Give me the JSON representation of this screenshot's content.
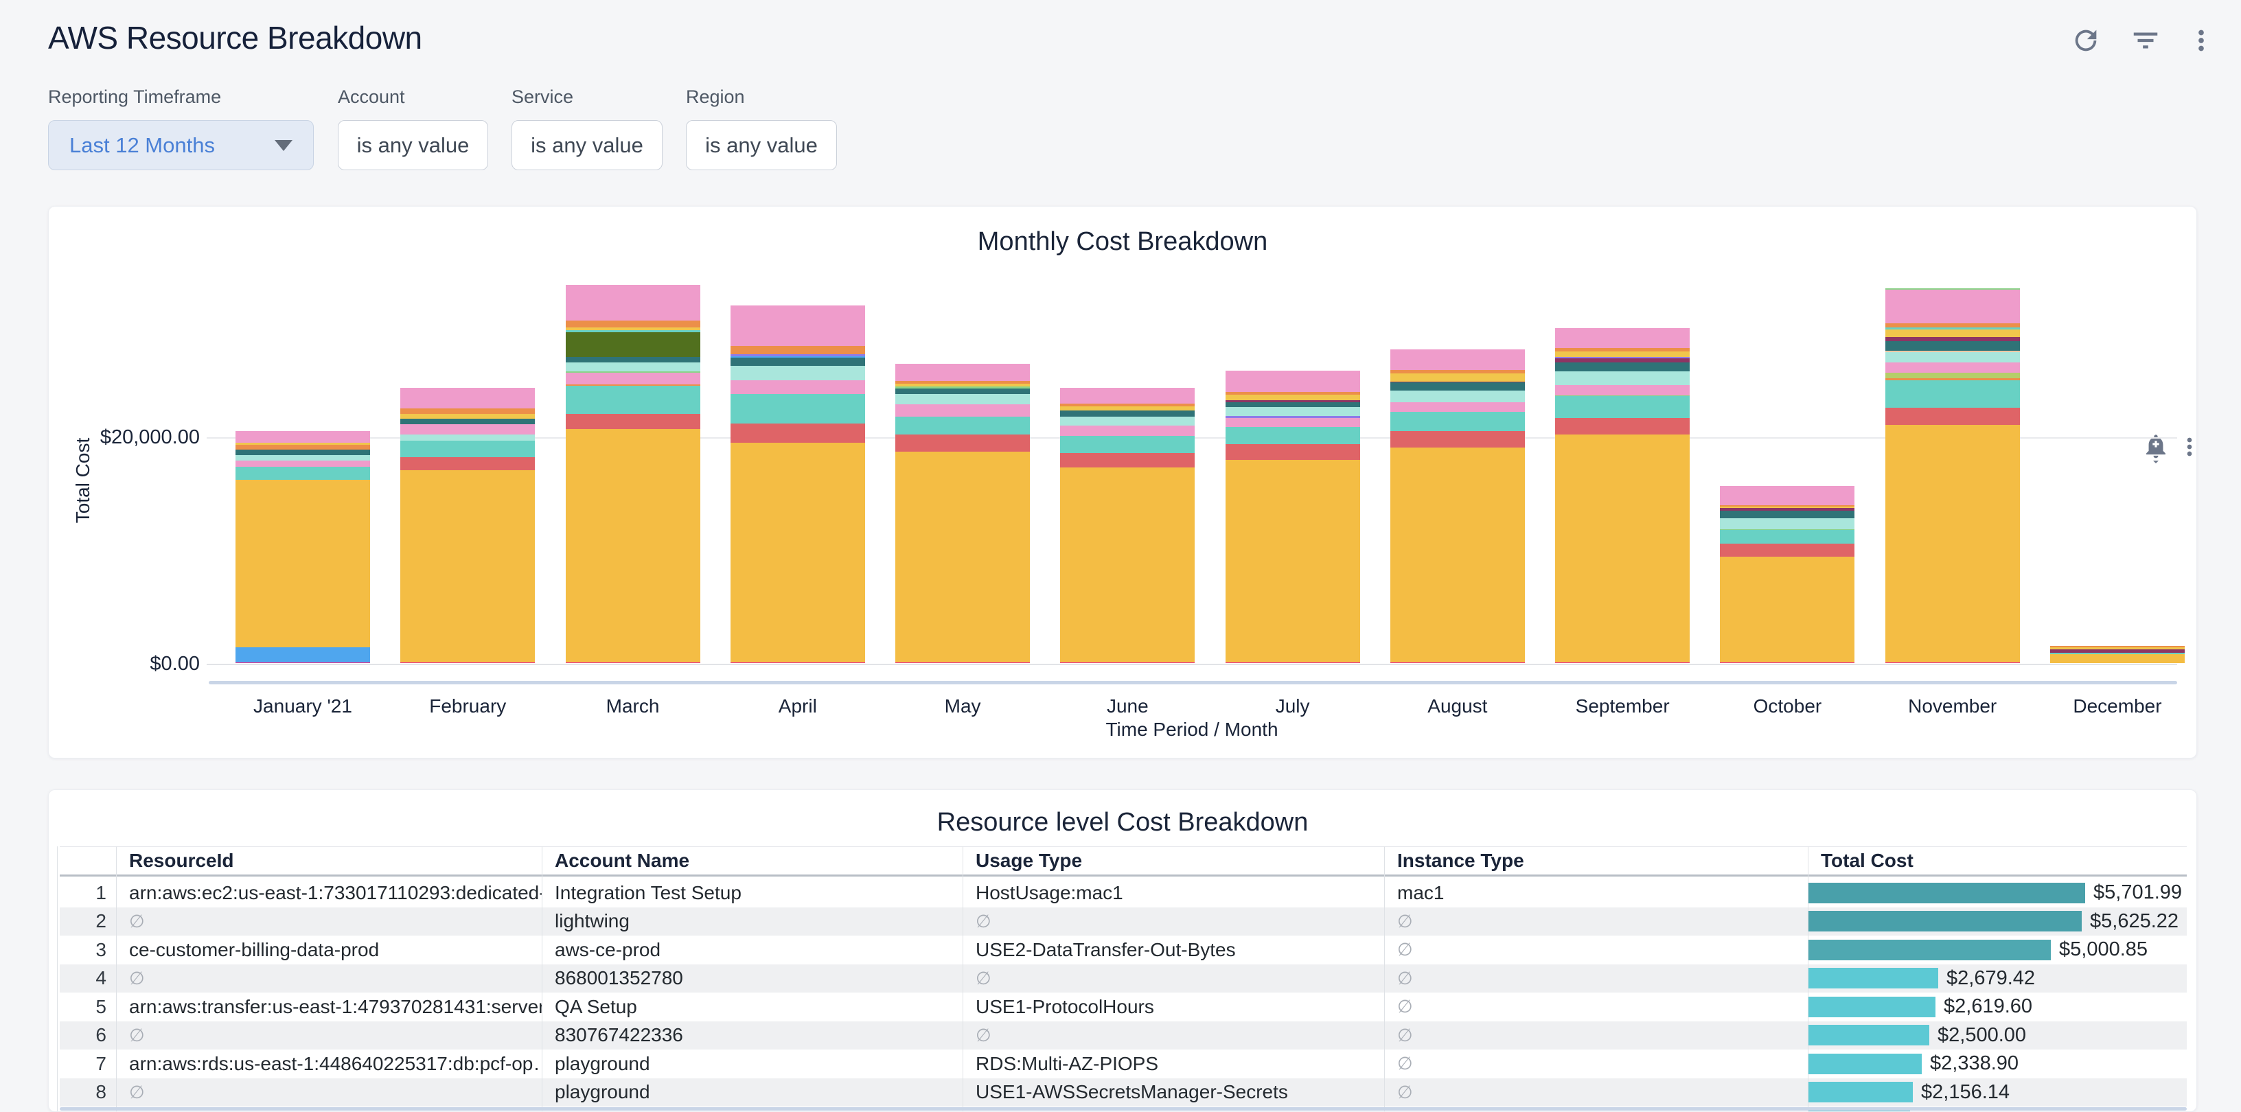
{
  "header": {
    "title": "AWS Resource Breakdown",
    "icons": [
      "refresh-icon",
      "filter-list-icon",
      "kebab-menu-icon"
    ]
  },
  "filters": [
    {
      "label": "Reporting Timeframe",
      "value": "Last 12 Months",
      "type": "dropdown"
    },
    {
      "label": "Account",
      "value": "is any value",
      "type": "button"
    },
    {
      "label": "Service",
      "value": "is any value",
      "type": "button"
    },
    {
      "label": "Region",
      "value": "is any value",
      "type": "button"
    }
  ],
  "chart_card": {
    "title": "Monthly Cost Breakdown",
    "icons": [
      "alert-bell-plus-icon",
      "kebab-menu-icon"
    ]
  },
  "chart_data": {
    "type": "bar",
    "stacked": true,
    "title": "Monthly Cost Breakdown",
    "xlabel": "Time Period / Month",
    "ylabel": "Total Cost",
    "yticks": [
      {
        "value": 20000,
        "label": "$20,000.00"
      },
      {
        "value": 0,
        "label": "$0.00"
      }
    ],
    "ylim": [
      0,
      34000
    ],
    "grid": "horizontal",
    "legend": "none",
    "palette": {
      "amber": "#F4BD44",
      "blue": "#4FA6EE",
      "magenta": "#E8348B",
      "coral": "#DF6467",
      "teal": "#68D1C4",
      "pink": "#EF9CCB",
      "paleCyan": "#A9E6DC",
      "darkTeal": "#2F7377",
      "olive": "#51701E",
      "orange": "#EC8F49",
      "yellow": "#F1C64C",
      "green": "#8BD389",
      "lime": "#B5CE69",
      "maroon": "#8E3563",
      "purple": "#8F7BE8",
      "peach": "#EFC9A5"
    },
    "categories": [
      "January '21",
      "February",
      "March",
      "April",
      "May",
      "June",
      "July",
      "August",
      "September",
      "October",
      "November",
      "December"
    ],
    "bars": [
      {
        "month": "January '21",
        "total": 20500,
        "segments": [
          [
            "magenta",
            60
          ],
          [
            "blue",
            1350
          ],
          [
            "amber",
            14800
          ],
          [
            "teal",
            1100
          ],
          [
            "pink",
            600
          ],
          [
            "paleCyan",
            480
          ],
          [
            "darkTeal",
            480
          ],
          [
            "orange",
            410
          ],
          [
            "yellow",
            200
          ],
          [
            "pink",
            1020
          ]
        ]
      },
      {
        "month": "February",
        "total": 24300,
        "segments": [
          [
            "magenta",
            60
          ],
          [
            "amber",
            17000
          ],
          [
            "coral",
            1150
          ],
          [
            "teal",
            1400
          ],
          [
            "paleCyan",
            560
          ],
          [
            "pink",
            900
          ],
          [
            "darkTeal",
            480
          ],
          [
            "yellow",
            480
          ],
          [
            "orange",
            430
          ],
          [
            "pink",
            1840
          ]
        ]
      },
      {
        "month": "March",
        "total": 33400,
        "segments": [
          [
            "magenta",
            60
          ],
          [
            "amber",
            20600
          ],
          [
            "coral",
            1330
          ],
          [
            "teal",
            2480
          ],
          [
            "orange",
            120
          ],
          [
            "pink",
            1030
          ],
          [
            "green",
            120
          ],
          [
            "paleCyan",
            790
          ],
          [
            "darkTeal",
            480
          ],
          [
            "olive",
            2230
          ],
          [
            "teal",
            180
          ],
          [
            "yellow",
            240
          ],
          [
            "orange",
            600
          ],
          [
            "pink",
            3140
          ]
        ]
      },
      {
        "month": "April",
        "total": 31600,
        "segments": [
          [
            "magenta",
            60
          ],
          [
            "amber",
            19400
          ],
          [
            "coral",
            1700
          ],
          [
            "teal",
            2600
          ],
          [
            "pink",
            1200
          ],
          [
            "paleCyan",
            1300
          ],
          [
            "darkTeal",
            700
          ],
          [
            "blue",
            160
          ],
          [
            "purple",
            160
          ],
          [
            "orange",
            700
          ],
          [
            "pink",
            3620
          ]
        ]
      },
      {
        "month": "May",
        "total": 26400,
        "segments": [
          [
            "magenta",
            60
          ],
          [
            "amber",
            18600
          ],
          [
            "coral",
            1500
          ],
          [
            "teal",
            1600
          ],
          [
            "pink",
            1100
          ],
          [
            "paleCyan",
            900
          ],
          [
            "darkTeal",
            500
          ],
          [
            "green",
            140
          ],
          [
            "yellow",
            300
          ],
          [
            "orange",
            230
          ],
          [
            "pink",
            1470
          ]
        ]
      },
      {
        "month": "June",
        "total": 24300,
        "segments": [
          [
            "magenta",
            60
          ],
          [
            "amber",
            17200
          ],
          [
            "coral",
            1300
          ],
          [
            "teal",
            1500
          ],
          [
            "pink",
            900
          ],
          [
            "paleCyan",
            800
          ],
          [
            "darkTeal",
            550
          ],
          [
            "yellow",
            390
          ],
          [
            "orange",
            230
          ],
          [
            "pink",
            1370
          ]
        ]
      },
      {
        "month": "July",
        "total": 25800,
        "segments": [
          [
            "magenta",
            60
          ],
          [
            "amber",
            17900
          ],
          [
            "coral",
            1400
          ],
          [
            "teal",
            1500
          ],
          [
            "pink",
            800
          ],
          [
            "purple",
            150
          ],
          [
            "paleCyan",
            800
          ],
          [
            "darkTeal",
            450
          ],
          [
            "maroon",
            160
          ],
          [
            "yellow",
            500
          ],
          [
            "orange",
            200
          ],
          [
            "pink",
            1880
          ]
        ]
      },
      {
        "month": "August",
        "total": 27700,
        "segments": [
          [
            "magenta",
            60
          ],
          [
            "amber",
            19000
          ],
          [
            "coral",
            1400
          ],
          [
            "teal",
            1700
          ],
          [
            "pink",
            900
          ],
          [
            "paleCyan",
            1000
          ],
          [
            "darkTeal",
            700
          ],
          [
            "maroon",
            120
          ],
          [
            "yellow",
            700
          ],
          [
            "orange",
            300
          ],
          [
            "pink",
            1820
          ]
        ]
      },
      {
        "month": "September",
        "total": 29600,
        "segments": [
          [
            "magenta",
            60
          ],
          [
            "amber",
            20100
          ],
          [
            "coral",
            1500
          ],
          [
            "teal",
            1900
          ],
          [
            "green",
            100
          ],
          [
            "pink",
            900
          ],
          [
            "paleCyan",
            1200
          ],
          [
            "darkTeal",
            800
          ],
          [
            "maroon",
            350
          ],
          [
            "purple",
            140
          ],
          [
            "yellow",
            500
          ],
          [
            "orange",
            250
          ],
          [
            "pink",
            1800
          ]
        ]
      },
      {
        "month": "October",
        "total": 15610,
        "segments": [
          [
            "magenta",
            60
          ],
          [
            "amber",
            9340
          ],
          [
            "coral",
            1150
          ],
          [
            "teal",
            1200
          ],
          [
            "green",
            90
          ],
          [
            "paleCyan",
            950
          ],
          [
            "darkTeal",
            650
          ],
          [
            "maroon",
            250
          ],
          [
            "yellow",
            150
          ],
          [
            "orange",
            90
          ],
          [
            "pink",
            1680
          ]
        ]
      },
      {
        "month": "November",
        "total": 33100,
        "segments": [
          [
            "magenta",
            60
          ],
          [
            "amber",
            21000
          ],
          [
            "coral",
            1510
          ],
          [
            "teal",
            2420
          ],
          [
            "orange",
            180
          ],
          [
            "lime",
            480
          ],
          [
            "pink",
            900
          ],
          [
            "paleCyan",
            900
          ],
          [
            "peach",
            120
          ],
          [
            "darkTeal",
            850
          ],
          [
            "maroon",
            360
          ],
          [
            "yellow",
            660
          ],
          [
            "teal",
            180
          ],
          [
            "orange",
            360
          ],
          [
            "pink",
            3000
          ],
          [
            "green",
            120
          ]
        ]
      },
      {
        "month": "December",
        "total": 1500,
        "segments": [
          [
            "amber",
            800
          ],
          [
            "teal",
            120
          ],
          [
            "maroon",
            280
          ],
          [
            "yellow",
            200
          ],
          [
            "orange",
            100
          ]
        ]
      }
    ]
  },
  "table_card": {
    "title": "Resource level Cost Breakdown",
    "columns": [
      "ResourceId",
      "Account Name",
      "Usage Type",
      "Instance Type",
      "Total Cost"
    ],
    "null_symbol": "∅",
    "max_bar_value": 5701.99,
    "rows": [
      {
        "index": "1",
        "resource_id": "arn:aws:ec2:us-east-1:733017110293:dedicated-…",
        "account_name": "Integration Test Setup",
        "usage_type": "HostUsage:mac1",
        "instance_type": "mac1",
        "total_cost": "$5,701.99",
        "cost_value": 5701.99,
        "bar_color": "#49A0AA"
      },
      {
        "index": "2",
        "resource_id": "∅",
        "account_name": "lightwing",
        "usage_type": "∅",
        "instance_type": "∅",
        "total_cost": "$5,625.22",
        "cost_value": 5625.22,
        "bar_color": "#49A0AA"
      },
      {
        "index": "3",
        "resource_id": "ce-customer-billing-data-prod",
        "account_name": "aws-ce-prod",
        "usage_type": "USE2-DataTransfer-Out-Bytes",
        "instance_type": "∅",
        "total_cost": "$5,000.85",
        "cost_value": 5000.85,
        "bar_color": "#4FA8B1"
      },
      {
        "index": "4",
        "resource_id": "∅",
        "account_name": "868001352780",
        "usage_type": "∅",
        "instance_type": "∅",
        "total_cost": "$2,679.42",
        "cost_value": 2679.42,
        "bar_color": "#5CC9D4"
      },
      {
        "index": "5",
        "resource_id": "arn:aws:transfer:us-east-1:479370281431:server…",
        "account_name": "QA Setup",
        "usage_type": "USE1-ProtocolHours",
        "instance_type": "∅",
        "total_cost": "$2,619.60",
        "cost_value": 2619.6,
        "bar_color": "#5CC9D4"
      },
      {
        "index": "6",
        "resource_id": "∅",
        "account_name": "830767422336",
        "usage_type": "∅",
        "instance_type": "∅",
        "total_cost": "$2,500.00",
        "cost_value": 2500.0,
        "bar_color": "#5CC9D4"
      },
      {
        "index": "7",
        "resource_id": "arn:aws:rds:us-east-1:448640225317:db:pcf-op…",
        "account_name": "playground",
        "usage_type": "RDS:Multi-AZ-PIOPS",
        "instance_type": "∅",
        "total_cost": "$2,338.90",
        "cost_value": 2338.9,
        "bar_color": "#5CC9D4"
      },
      {
        "index": "8",
        "resource_id": "∅",
        "account_name": "playground",
        "usage_type": "USE1-AWSSecretsManager-Secrets",
        "instance_type": "∅",
        "total_cost": "$2,156.14",
        "cost_value": 2156.14,
        "bar_color": "#5CC9D4"
      },
      {
        "index": "",
        "resource_id": "",
        "account_name": "",
        "usage_type": "",
        "instance_type": "",
        "total_cost": "",
        "cost_value": 2100,
        "bar_color": "#5CC9D4"
      }
    ]
  }
}
